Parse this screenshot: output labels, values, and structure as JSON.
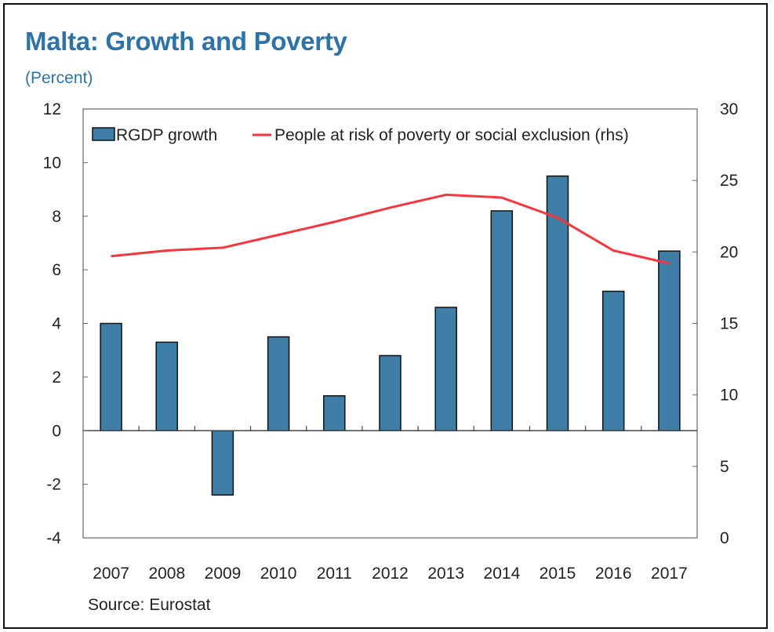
{
  "chart_data": {
    "type": "bar",
    "title": "Malta: Growth and Poverty",
    "subtitle": "(Percent)",
    "source": "Source: Eurostat",
    "categories": [
      "2007",
      "2008",
      "2009",
      "2010",
      "2011",
      "2012",
      "2013",
      "2014",
      "2015",
      "2016",
      "2017"
    ],
    "series": [
      {
        "name": "RGDP growth",
        "type": "bar",
        "axis": "left",
        "color": "#3f7ea6",
        "values": [
          4.0,
          3.3,
          -2.4,
          3.5,
          1.3,
          2.8,
          4.6,
          8.2,
          9.5,
          5.2,
          6.7
        ]
      },
      {
        "name": "People at risk of poverty or social exclusion (rhs)",
        "type": "line",
        "axis": "right",
        "color": "#f2373d",
        "values": [
          19.7,
          20.1,
          20.3,
          21.2,
          22.1,
          23.1,
          24.0,
          23.8,
          22.4,
          20.1,
          19.2
        ]
      }
    ],
    "ylim_left": [
      -4,
      12
    ],
    "ylim_right": [
      0,
      30
    ],
    "yticks_left": [
      "12",
      "10",
      "8",
      "6",
      "4",
      "2",
      "0",
      "-2",
      "-4"
    ],
    "yticks_right": [
      "30",
      "25",
      "20",
      "15",
      "10",
      "5",
      "0"
    ],
    "grid": false,
    "legend_position": "top"
  }
}
